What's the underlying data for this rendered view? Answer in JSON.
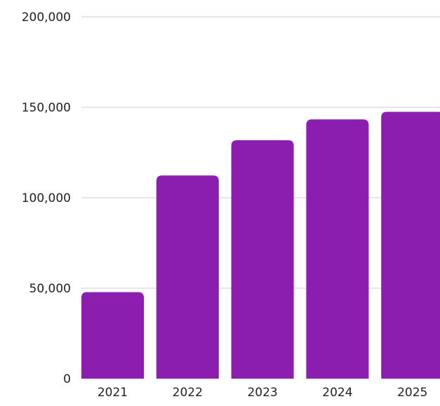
{
  "chart_data": {
    "type": "bar",
    "categories": [
      "2021",
      "2022",
      "2023",
      "2024",
      "2025"
    ],
    "values": [
      47800,
      112300,
      131800,
      143300,
      147500
    ],
    "ylim": [
      0,
      200000
    ],
    "yticks": [
      0,
      50000,
      100000,
      150000,
      200000
    ],
    "ytick_labels": [
      "0",
      "50,000",
      "100,000",
      "150,000",
      "200,000"
    ],
    "grid": true,
    "bar_color": "#8b1eaf",
    "grid_color": "#cccccc",
    "text_color": "#222222"
  }
}
